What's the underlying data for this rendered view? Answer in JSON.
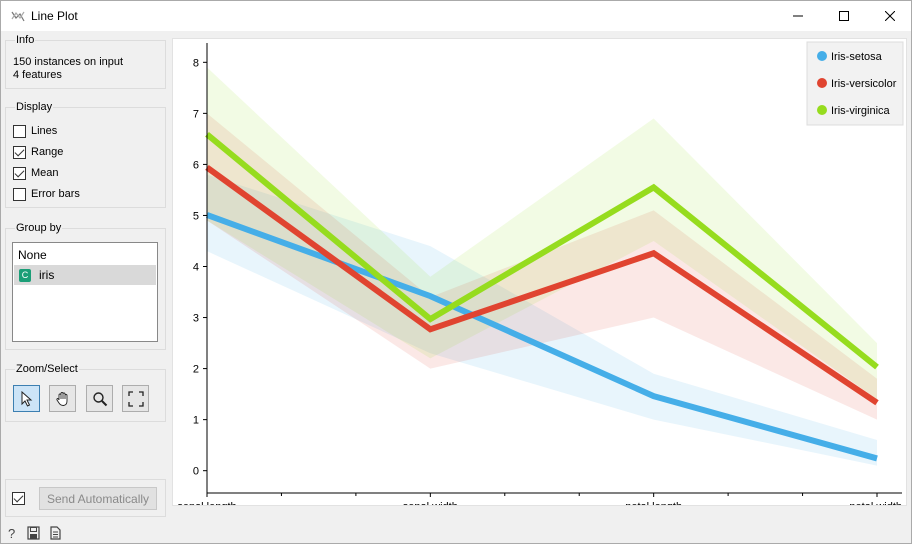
{
  "window": {
    "title": "Line Plot",
    "minimize_label": "—",
    "maximize_label": "☐",
    "close_label": "✕"
  },
  "info": {
    "title": "Info",
    "instances": "150 instances on input",
    "features": "4 features"
  },
  "display": {
    "title": "Display",
    "options": [
      {
        "label": "Lines",
        "checked": false
      },
      {
        "label": "Range",
        "checked": true
      },
      {
        "label": "Mean",
        "checked": true
      },
      {
        "label": "Error bars",
        "checked": false
      }
    ]
  },
  "group_by": {
    "title": "Group by",
    "items": [
      {
        "label": "None",
        "selected": false
      },
      {
        "label": "iris",
        "selected": true,
        "icon": "C"
      }
    ]
  },
  "zoom_select": {
    "title": "Zoom/Select",
    "tools": [
      "select-tool-icon",
      "pan-tool-icon",
      "zoom-tool-icon",
      "reset-zoom-icon"
    ]
  },
  "send": {
    "label": "Send Automatically",
    "auto_checked": true
  },
  "chart_data": {
    "type": "line",
    "categories": [
      "sepal length",
      "sepal width",
      "petal length",
      "petal width"
    ],
    "ylim": [
      -0.3,
      8.3
    ],
    "yticks": [
      "0",
      "1",
      "2",
      "3",
      "4",
      "5",
      "6",
      "7",
      "8"
    ],
    "grid": false,
    "legend_position": "top-right",
    "series": [
      {
        "name": "Iris-setosa",
        "color": "#45aee8",
        "mean": [
          5.01,
          3.42,
          1.46,
          0.24
        ],
        "min": [
          4.3,
          2.3,
          1.0,
          0.1
        ],
        "max": [
          5.8,
          4.4,
          1.9,
          0.6
        ]
      },
      {
        "name": "Iris-versicolor",
        "color": "#e04430",
        "mean": [
          5.94,
          2.77,
          4.26,
          1.33
        ],
        "min": [
          4.9,
          2.0,
          3.0,
          1.0
        ],
        "max": [
          7.0,
          3.4,
          5.1,
          1.8
        ]
      },
      {
        "name": "Iris-virginica",
        "color": "#96dc1e",
        "mean": [
          6.59,
          2.97,
          5.55,
          2.03
        ],
        "min": [
          4.9,
          2.2,
          4.5,
          1.4
        ],
        "max": [
          7.9,
          3.8,
          6.9,
          2.5
        ]
      }
    ]
  }
}
